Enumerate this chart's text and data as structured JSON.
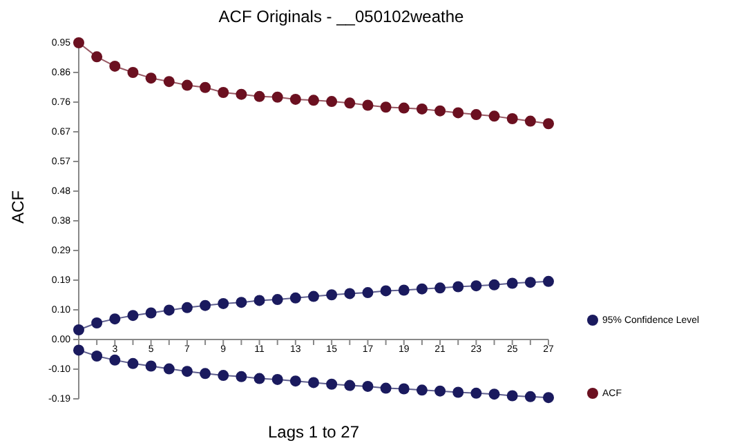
{
  "chart_data": {
    "type": "line",
    "title": "ACF Originals - __050102weathe",
    "xlabel": "Lags  1 to 27",
    "ylabel": "ACF",
    "x": [
      1,
      2,
      3,
      4,
      5,
      6,
      7,
      8,
      9,
      10,
      11,
      12,
      13,
      14,
      15,
      16,
      17,
      18,
      19,
      20,
      21,
      22,
      23,
      24,
      25,
      26,
      27
    ],
    "xlim": [
      1,
      27
    ],
    "xticks": [
      {
        "value": 1,
        "label": null
      },
      {
        "value": 2,
        "label": null
      },
      3,
      {
        "value": 4,
        "label": null
      },
      5,
      {
        "value": 6,
        "label": null
      },
      7,
      {
        "value": 8,
        "label": null
      },
      9,
      {
        "value": 10,
        "label": null
      },
      11,
      {
        "value": 12,
        "label": null
      },
      13,
      {
        "value": 14,
        "label": null
      },
      15,
      {
        "value": 16,
        "label": null
      },
      17,
      {
        "value": 18,
        "label": null
      },
      19,
      {
        "value": 20,
        "label": null
      },
      21,
      {
        "value": 22,
        "label": null
      },
      23,
      {
        "value": 24,
        "label": null
      },
      25,
      {
        "value": 26,
        "label": null
      },
      27
    ],
    "ylim": [
      -0.19,
      0.95
    ],
    "yticks": [
      0.95,
      {
        "value": 0.855,
        "label": "0.86"
      },
      0.76,
      {
        "value": 0.665,
        "label": "0.67"
      },
      0.57,
      {
        "value": 0.475,
        "label": "0.48"
      },
      0.38,
      {
        "value": 0.285,
        "label": "0.29"
      },
      0.19,
      {
        "value": 0.095,
        "label": "0.10"
      },
      {
        "value": 0,
        "label": "0.00"
      },
      {
        "value": -0.095,
        "label": "-0.10"
      },
      -0.19
    ],
    "series": [
      {
        "name": "95% Confidence Level",
        "color": "#1a1a5e",
        "values": [
          0.031,
          0.053,
          0.066,
          0.077,
          0.085,
          0.094,
          0.102,
          0.109,
          0.115,
          0.119,
          0.125,
          0.128,
          0.133,
          0.138,
          0.143,
          0.147,
          0.15,
          0.156,
          0.158,
          0.162,
          0.165,
          0.169,
          0.172,
          0.175,
          0.18,
          0.183,
          0.186
        ]
      },
      {
        "color": "#1a1a5e",
        "values": [
          -0.034,
          -0.053,
          -0.066,
          -0.077,
          -0.085,
          -0.094,
          -0.102,
          -0.109,
          -0.115,
          -0.119,
          -0.125,
          -0.128,
          -0.133,
          -0.138,
          -0.143,
          -0.147,
          -0.15,
          -0.156,
          -0.158,
          -0.162,
          -0.165,
          -0.169,
          -0.172,
          -0.175,
          -0.18,
          -0.183,
          -0.186
        ]
      },
      {
        "name": "ACF",
        "color": "#6b1020",
        "values": [
          0.95,
          0.905,
          0.875,
          0.855,
          0.837,
          0.826,
          0.814,
          0.807,
          0.791,
          0.785,
          0.778,
          0.776,
          0.769,
          0.766,
          0.762,
          0.757,
          0.75,
          0.744,
          0.741,
          0.738,
          0.732,
          0.726,
          0.72,
          0.715,
          0.707,
          0.699,
          0.691
        ]
      }
    ],
    "marker": "circle",
    "grid": false,
    "legend": "right"
  }
}
